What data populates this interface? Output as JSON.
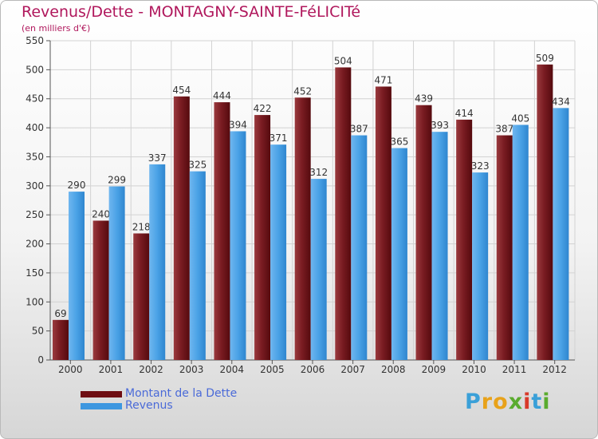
{
  "header": {
    "title": "Revenus/Dette - MONTAGNY-SAINTE-FéLICITé",
    "subtitle": "(en milliers d'€)"
  },
  "legend": {
    "items": [
      {
        "label": "Montant de la Dette",
        "color": "#6e0d12"
      },
      {
        "label": "Revenus",
        "color": "#3d97e0"
      }
    ]
  },
  "logo": {
    "text": "Proxiti",
    "letters": [
      {
        "ch": "P",
        "color": "#3aa0d8"
      },
      {
        "ch": "r",
        "color": "#e8a21a"
      },
      {
        "ch": "o",
        "color": "#e8a21a"
      },
      {
        "ch": "x",
        "color": "#5aab2e"
      },
      {
        "ch": "i",
        "color": "#d83a2a"
      },
      {
        "ch": "t",
        "color": "#3aa0d8"
      },
      {
        "ch": "i",
        "color": "#5aab2e"
      }
    ]
  },
  "chart_data": {
    "type": "bar",
    "title": "Revenus/Dette - MONTAGNY-SAINTE-FéLICITé",
    "subtitle": "(en milliers d'€)",
    "categories": [
      "2000",
      "2001",
      "2002",
      "2003",
      "2004",
      "2005",
      "2006",
      "2007",
      "2008",
      "2009",
      "2010",
      "2011",
      "2012"
    ],
    "series": [
      {
        "name": "Montant de la Dette",
        "color": "#6e0d12",
        "values": [
          69,
          240,
          218,
          454,
          444,
          422,
          452,
          504,
          471,
          439,
          414,
          387,
          509
        ]
      },
      {
        "name": "Revenus",
        "color": "#3d97e0",
        "values": [
          290,
          299,
          337,
          325,
          394,
          371,
          312,
          387,
          365,
          393,
          323,
          405,
          434
        ]
      }
    ],
    "ylim": [
      0,
      550
    ],
    "yticks": [
      0,
      50,
      100,
      150,
      200,
      250,
      300,
      350,
      400,
      450,
      500,
      550
    ],
    "grid": true,
    "legend_position": "bottom-left"
  }
}
